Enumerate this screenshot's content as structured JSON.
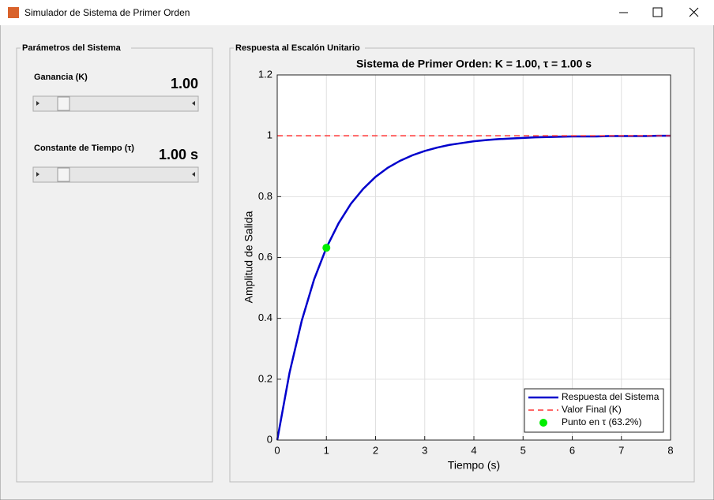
{
  "window": {
    "title": "Simulador de Sistema de Primer Orden"
  },
  "left_panel": {
    "title": "Parámetros del Sistema",
    "controls": [
      {
        "label": "Ganancia (K)",
        "display": "1.00"
      },
      {
        "label": "Constante de Tiempo (τ)",
        "display": "1.00 s"
      }
    ]
  },
  "right_panel": {
    "title": "Respuesta al Escalón Unitario"
  },
  "chart_data": {
    "type": "line",
    "title": "Sistema de Primer Orden: K = 1.00, τ = 1.00 s",
    "x_label": "Tiempo (s)",
    "y_label": "Amplitud de Salida",
    "xlim": [
      0,
      8
    ],
    "xticks": [
      0,
      1,
      2,
      3,
      4,
      5,
      6,
      7,
      8
    ],
    "ylim": [
      0,
      1.2
    ],
    "yticks": [
      0,
      0.2,
      0.4,
      0.6,
      0.8,
      1,
      1.2
    ],
    "grid": true,
    "legend": "lower right",
    "series": [
      {
        "name": "Respuesta del Sistema",
        "color": "#0000cc",
        "style": "solid",
        "x": [
          0,
          0.25,
          0.5,
          0.75,
          1,
          1.25,
          1.5,
          1.75,
          2,
          2.25,
          2.5,
          2.75,
          3,
          3.25,
          3.5,
          3.75,
          4,
          4.25,
          4.5,
          4.75,
          5,
          5.25,
          5.5,
          5.75,
          6,
          6.25,
          6.5,
          6.75,
          7,
          7.25,
          7.5,
          7.75,
          8
        ],
        "values": [
          0,
          0.221,
          0.393,
          0.528,
          0.632,
          0.713,
          0.777,
          0.826,
          0.865,
          0.895,
          0.918,
          0.936,
          0.95,
          0.961,
          0.97,
          0.976,
          0.982,
          0.986,
          0.989,
          0.991,
          0.993,
          0.995,
          0.996,
          0.997,
          0.998,
          0.998,
          0.998,
          0.999,
          0.999,
          0.999,
          0.999,
          1.0,
          1.0
        ]
      },
      {
        "name": "Valor Final (K)",
        "color": "#ff3333",
        "style": "dashed",
        "x": [
          0,
          8
        ],
        "values": [
          1,
          1
        ]
      },
      {
        "name": "Punto en τ (63.2%)",
        "color": "#00ee00",
        "style": "marker",
        "x": [
          1
        ],
        "values": [
          0.632
        ]
      }
    ]
  }
}
